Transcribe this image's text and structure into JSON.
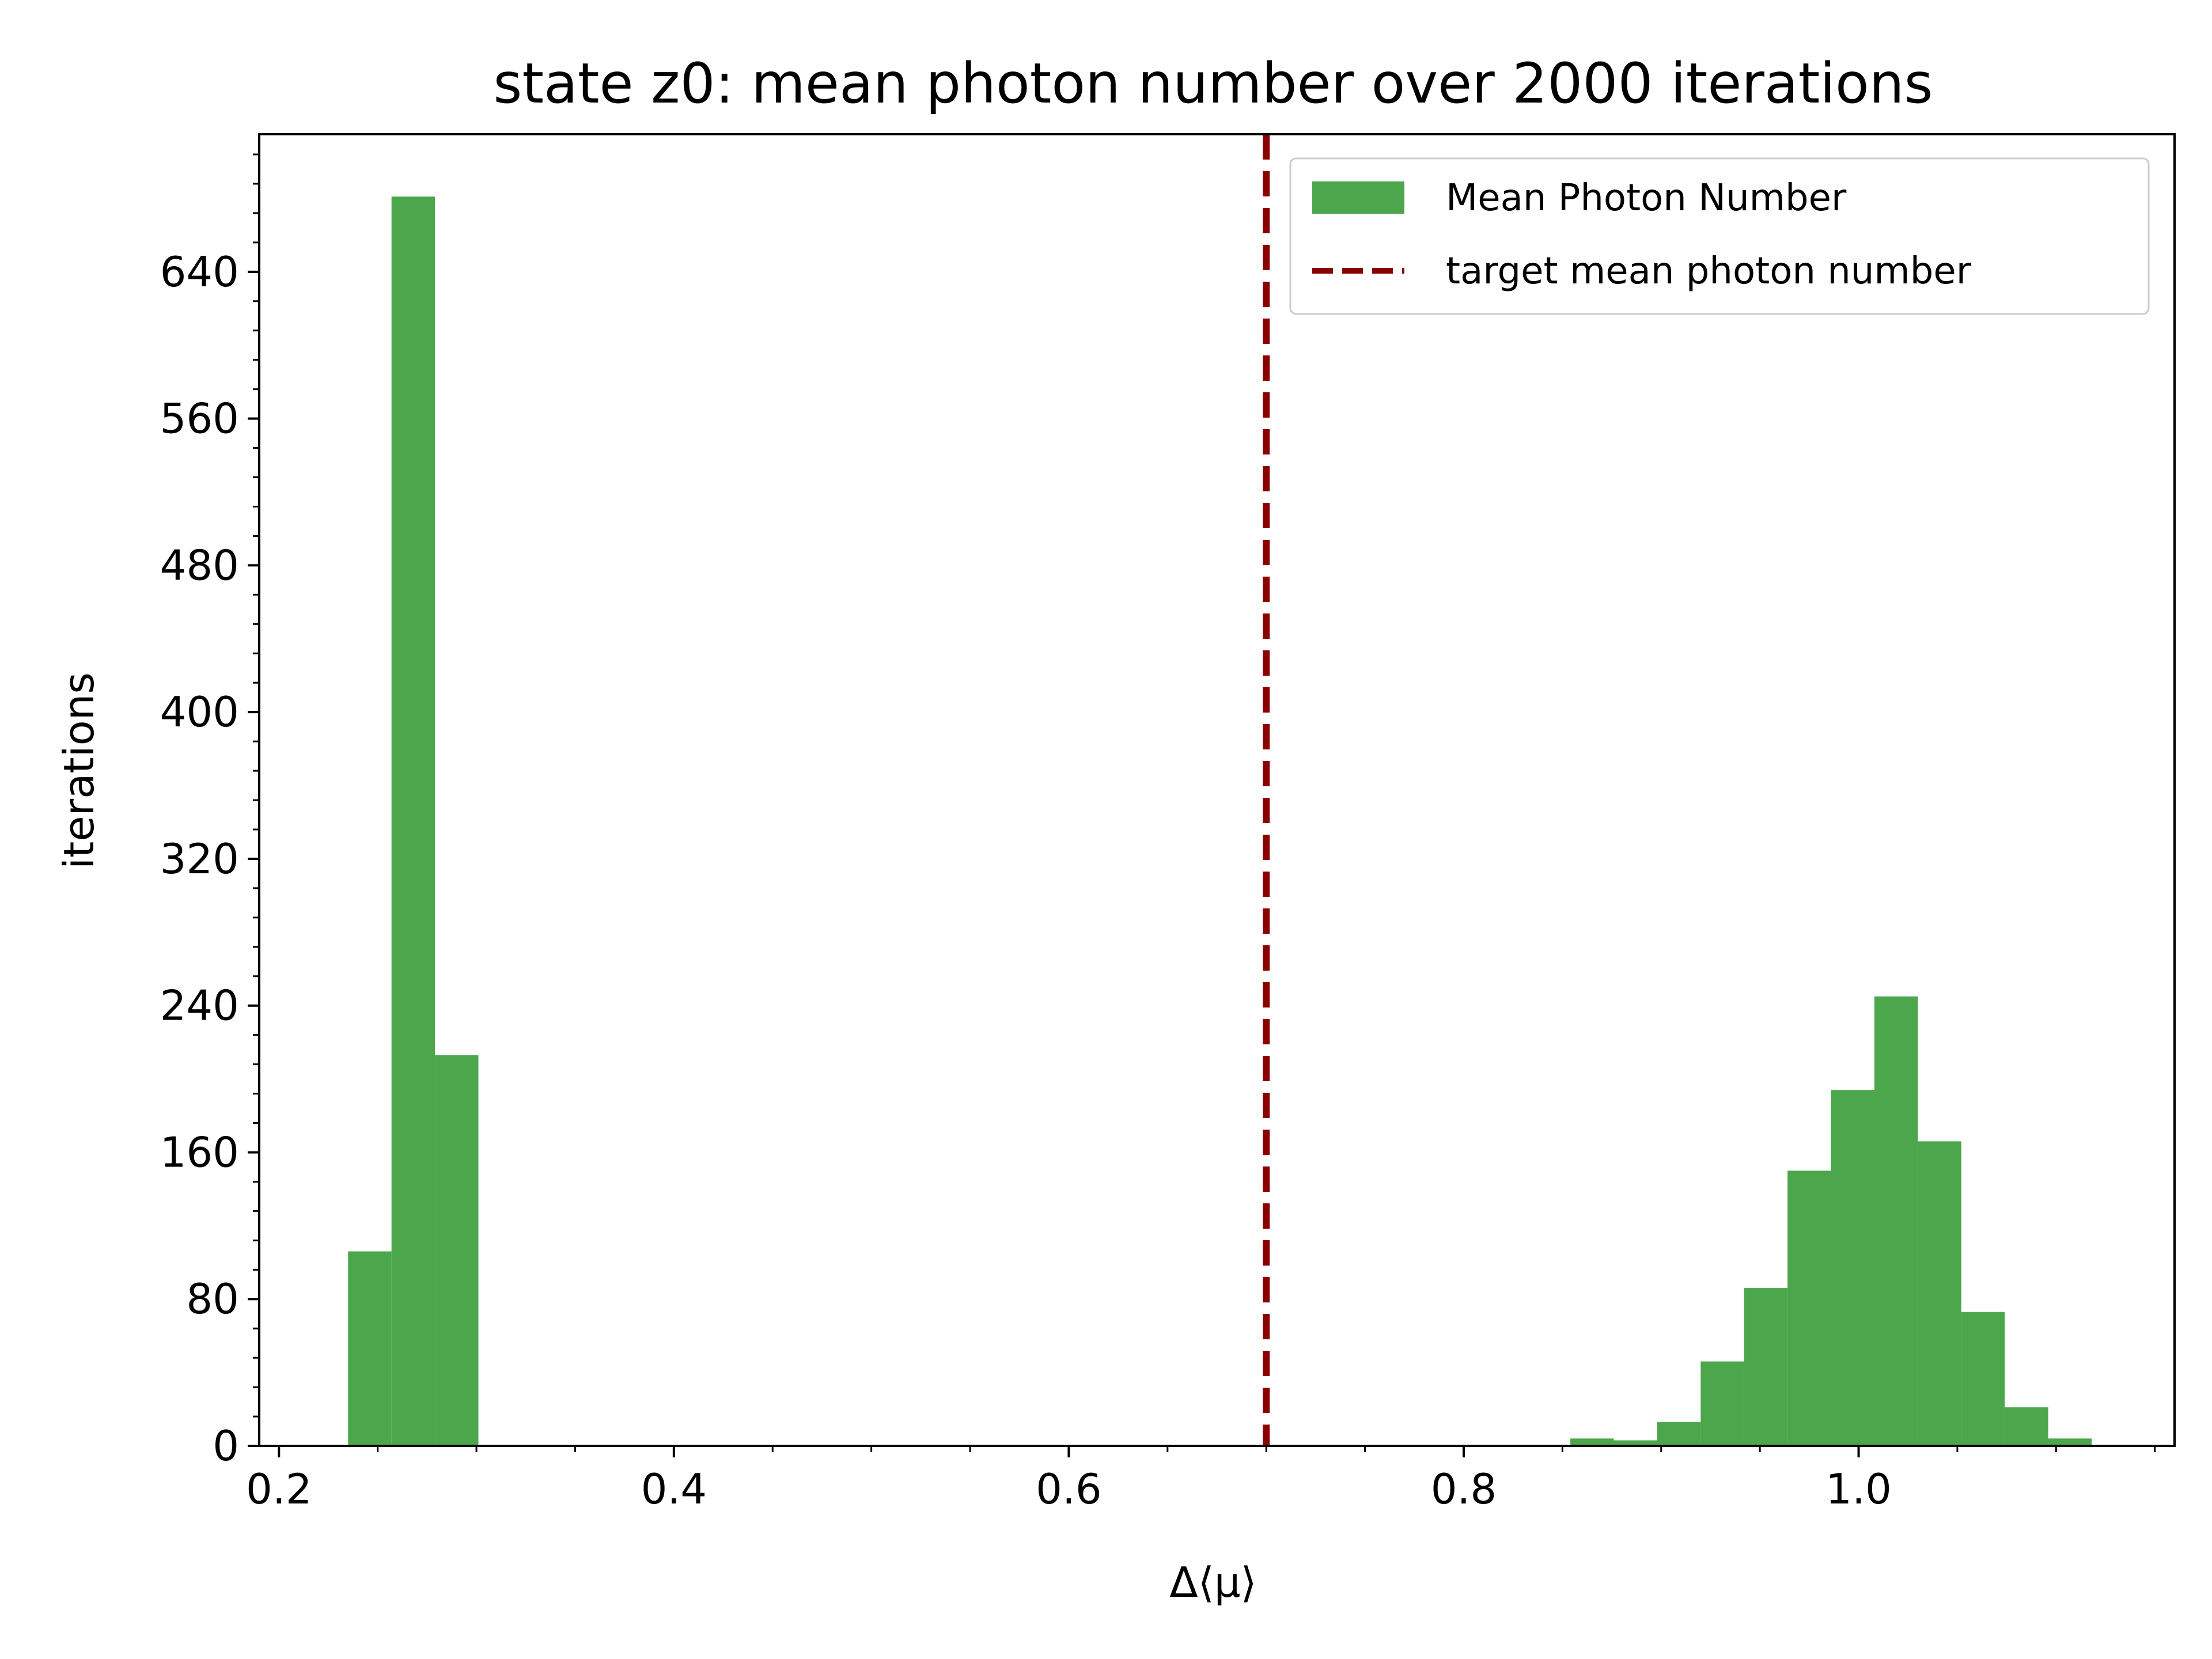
{
  "chart_data": {
    "type": "bar",
    "title": "state z0: mean photon number over 2000 iterations",
    "xlabel": "Δ⟨μ⟩",
    "ylabel": "iterations",
    "xlim": [
      0.19,
      1.16
    ],
    "ylim": [
      0,
      715
    ],
    "xticks": [
      0.2,
      0.4,
      0.6,
      0.8,
      1.0
    ],
    "xtick_labels": [
      "0.2",
      "0.4",
      "0.6",
      "0.8",
      "1.0"
    ],
    "yticks": [
      0,
      80,
      160,
      240,
      320,
      400,
      480,
      560,
      640
    ],
    "ytick_labels": [
      "0",
      "80",
      "160",
      "240",
      "320",
      "400",
      "480",
      "560",
      "640"
    ],
    "grid": false,
    "legend_position": "top-right",
    "series": [
      {
        "name": "Mean Photon Number",
        "kind": "histogram",
        "color": "#4ca64c",
        "bins": [
          {
            "x0": 0.235,
            "x1": 0.257,
            "count": 106
          },
          {
            "x0": 0.257,
            "x1": 0.279,
            "count": 681
          },
          {
            "x0": 0.279,
            "x1": 0.301,
            "count": 213
          },
          {
            "x0": 0.854,
            "x1": 0.876,
            "count": 4
          },
          {
            "x0": 0.876,
            "x1": 0.898,
            "count": 3
          },
          {
            "x0": 0.898,
            "x1": 0.92,
            "count": 13
          },
          {
            "x0": 0.92,
            "x1": 0.942,
            "count": 46
          },
          {
            "x0": 0.942,
            "x1": 0.964,
            "count": 86
          },
          {
            "x0": 0.964,
            "x1": 0.986,
            "count": 150
          },
          {
            "x0": 0.986,
            "x1": 1.008,
            "count": 194
          },
          {
            "x0": 1.008,
            "x1": 1.03,
            "count": 245
          },
          {
            "x0": 1.03,
            "x1": 1.052,
            "count": 166
          },
          {
            "x0": 1.052,
            "x1": 1.074,
            "count": 73
          },
          {
            "x0": 1.074,
            "x1": 1.096,
            "count": 21
          },
          {
            "x0": 1.096,
            "x1": 1.118,
            "count": 4
          }
        ]
      },
      {
        "name": "target mean photon number",
        "kind": "vline",
        "x": 0.7,
        "color": "#8b0000",
        "style": "dashed"
      }
    ]
  }
}
